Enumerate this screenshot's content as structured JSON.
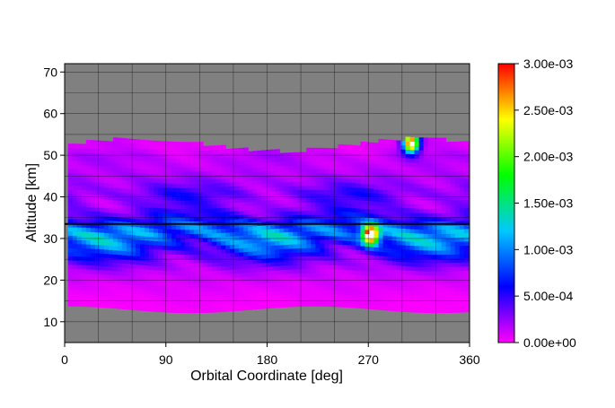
{
  "chart_data": {
    "type": "heatmap",
    "title": "",
    "xlabel": "Orbital Coordinate [deg]",
    "ylabel": "Altitude [km]",
    "xlim": [
      0,
      360
    ],
    "ylim": [
      5,
      72
    ],
    "xticks": [
      0,
      90,
      180,
      270,
      360
    ],
    "xtick_labels": [
      "0",
      "90",
      "180",
      "270",
      "360"
    ],
    "yticks": [
      10,
      20,
      30,
      40,
      50,
      60,
      70
    ],
    "ytick_labels": [
      "10",
      "20",
      "30",
      "40",
      "50",
      "60",
      "70"
    ],
    "grid": true,
    "background_color": "#808080",
    "reference_line": {
      "orientation": "horizontal",
      "y": 33.5,
      "color": "#000000"
    },
    "colorbar": {
      "min": 0.0,
      "max": 0.003,
      "ticks": [
        0.0,
        0.0005,
        0.001,
        0.0015,
        0.002,
        0.0025,
        0.003
      ],
      "tick_labels": [
        "0.00e+00",
        "5.00e-04",
        "1.00e-03",
        "1.50e-03",
        "2.00e-03",
        "2.50e-03",
        "3.00e-03"
      ],
      "colormap": [
        "#ff00ff",
        "#0000ff",
        "#00c8ff",
        "#00ff00",
        "#ffff00",
        "#ff0000"
      ]
    },
    "data_extent": {
      "x": [
        3,
        359
      ],
      "top_altitude": 52,
      "bottom_altitude": 13
    },
    "series": [
      {
        "altitude_levels_km": [
          13,
          16,
          19,
          22,
          25,
          27,
          29,
          31,
          33,
          35,
          38,
          41,
          44,
          47,
          50,
          52
        ],
        "orbital_coordinate_deg": [
          5,
          20,
          35,
          50,
          65,
          80,
          95,
          110,
          125,
          140,
          155,
          170,
          185,
          200,
          215,
          230,
          245,
          260,
          270,
          280,
          295,
          310,
          325,
          340,
          355
        ],
        "value_profile": [
          2e-05,
          5e-05,
          0.0001,
          0.0002,
          0.0005,
          0.0008,
          0.0011,
          0.0013,
          0.0012,
          0.0007,
          0.0004,
          0.0005,
          0.0003,
          0.0002,
          0.0002,
          0.0001
        ],
        "hotspots": [
          {
            "x": 272,
            "y": 31,
            "value": 0.003
          },
          {
            "x": 308,
            "y": 53,
            "value": 0.003
          }
        ]
      }
    ]
  }
}
